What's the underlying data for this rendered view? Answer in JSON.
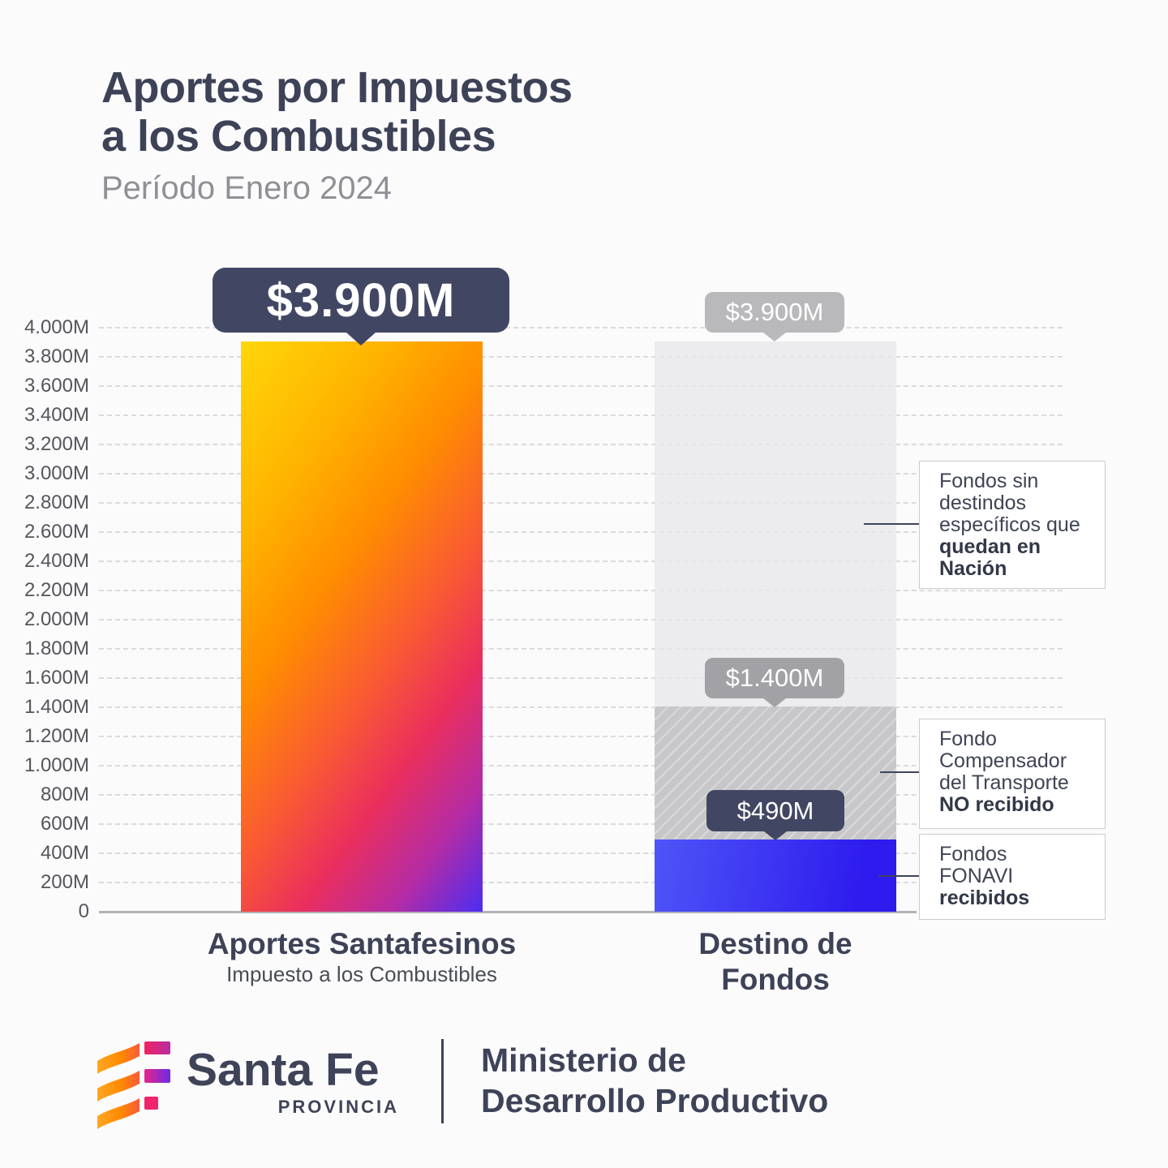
{
  "header": {
    "title_line1": "Aportes por Impuestos",
    "title_line2": "a los Combustibles",
    "subtitle": "Período Enero 2024"
  },
  "chart_data": {
    "type": "bar",
    "title": "Aportes por Impuestos a los Combustibles",
    "subtitle": "Período Enero 2024",
    "unit": "millones de pesos (M)",
    "ylim": [
      0,
      4000
    ],
    "ytick_step": 200,
    "grid": true,
    "ytick_labels": [
      "4.000M",
      "3.800M",
      "3.600M",
      "3.400M",
      "3.200M",
      "3.000M",
      "2.800M",
      "2.600M",
      "2.400M",
      "2.200M",
      "2.000M",
      "1.800M",
      "1.600M",
      "1.400M",
      "1.200M",
      "1.000M",
      "800M",
      "600M",
      "400M",
      "200M",
      "0"
    ],
    "categories": [
      "Aportes Santafesinos",
      "Destino de Fondos"
    ],
    "bars": [
      {
        "category": "Aportes Santafesinos",
        "category_sub": "Impuesto a los Combustibles",
        "total": 3900,
        "total_label": "$3.900M",
        "gradient": [
          "#FFD60A",
          "#FF9500",
          "#EA2E5E",
          "#4B2DF2"
        ]
      },
      {
        "category": "Destino de Fondos",
        "total": 3900,
        "segments": [
          {
            "name": "Fondos sin destindos específicos que quedan en Nación",
            "from": 1400,
            "to": 3900,
            "value": 2500,
            "cumulative_label": "$3.900M",
            "color": "#E7E7EA"
          },
          {
            "name": "Fondo Compensador del Transporte NO recibido",
            "from": 490,
            "to": 1400,
            "value": 910,
            "cumulative_label": "$1.400M",
            "color": "#C7C7C9",
            "pattern": "diagonal-hatch"
          },
          {
            "name": "Fondos FONAVI recibidos",
            "from": 0,
            "to": 490,
            "value": 490,
            "cumulative_label": "$490M",
            "color": "#3B2CF0"
          }
        ]
      }
    ],
    "legend_position": "right-callouts"
  },
  "badges": {
    "left_total": "$3.900M",
    "right_total": "$3.900M",
    "right_mid": "$1.400M",
    "right_low": "$490M"
  },
  "x_labels": {
    "left_title": "Aportes Santafesinos",
    "left_sub": "Impuesto a los Combustibles",
    "right_line1": "Destino de",
    "right_line2": "Fondos"
  },
  "callouts": {
    "nacion": {
      "l1": "Fondos sin",
      "l2": "destindos",
      "l3": "específicos que",
      "l4": "quedan en",
      "l5": "Nación"
    },
    "transporte": {
      "l1": "Fondo",
      "l2": "Compensador",
      "l3": "del Transporte",
      "l4": "NO recibido"
    },
    "fonavi": {
      "l1": "Fondos",
      "l2": "FONAVI",
      "l3": "recibidos"
    }
  },
  "footer": {
    "brand": "Santa Fe",
    "brand_sub": "PROVINCIA",
    "ministry_line1": "Ministerio de",
    "ministry_line2": "Desarrollo Productivo"
  },
  "colors": {
    "title_text": "#3D4257",
    "subtitle_text": "#8F9095",
    "badge_dark": "#414763",
    "badge_gray": "#B9B9BC",
    "badge_gray_mid": "#A2A2A6",
    "gridline": "#DBDBDE",
    "zero_axis": "#B2B2B6",
    "callout_text": "#3F4455"
  }
}
